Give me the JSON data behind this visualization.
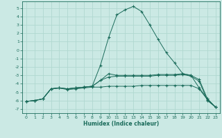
{
  "xlabel": "Humidex (Indice chaleur)",
  "ylabel": "",
  "xlim": [
    -0.5,
    23.5
  ],
  "ylim": [
    -7.5,
    5.8
  ],
  "xticks": [
    0,
    1,
    2,
    3,
    4,
    5,
    6,
    7,
    8,
    9,
    10,
    11,
    12,
    13,
    14,
    15,
    16,
    17,
    18,
    19,
    20,
    21,
    22,
    23
  ],
  "yticks": [
    -7,
    -6,
    -5,
    -4,
    -3,
    -2,
    -1,
    0,
    1,
    2,
    3,
    4,
    5
  ],
  "bg_color": "#cbe9e4",
  "line_color": "#1a6b5a",
  "grid_color": "#b0d8d0",
  "curve1_x": [
    0,
    1,
    2,
    3,
    4,
    5,
    6,
    7,
    8,
    9,
    10,
    11,
    12,
    13,
    14,
    15,
    16,
    17,
    18,
    19,
    20,
    21,
    22,
    23
  ],
  "curve1_y": [
    -6.1,
    -6.0,
    -5.8,
    -4.6,
    -4.5,
    -4.7,
    -4.6,
    -4.5,
    -4.4,
    -4.4,
    -4.3,
    -4.3,
    -4.3,
    -4.3,
    -4.2,
    -4.2,
    -4.2,
    -4.2,
    -4.2,
    -4.2,
    -4.2,
    -4.6,
    -5.9,
    -6.8
  ],
  "curve2_x": [
    0,
    1,
    2,
    3,
    4,
    5,
    6,
    7,
    8,
    9,
    10,
    11,
    12,
    13,
    14,
    15,
    16,
    17,
    18,
    19,
    20,
    21,
    22,
    23
  ],
  "curve2_y": [
    -6.1,
    -6.0,
    -5.8,
    -4.6,
    -4.5,
    -4.6,
    -4.5,
    -4.4,
    -4.3,
    -3.6,
    -3.2,
    -3.1,
    -3.1,
    -3.1,
    -3.1,
    -3.1,
    -3.0,
    -3.0,
    -3.0,
    -2.9,
    -3.1,
    -3.7,
    -6.0,
    -6.8
  ],
  "curve3_x": [
    0,
    1,
    2,
    3,
    4,
    5,
    6,
    7,
    8,
    9,
    10,
    11,
    12,
    13,
    14,
    15,
    16,
    17,
    18,
    19,
    20,
    21,
    22,
    23
  ],
  "curve3_y": [
    -6.1,
    -6.0,
    -5.8,
    -4.6,
    -4.5,
    -4.6,
    -4.5,
    -4.4,
    -4.3,
    -3.6,
    -2.8,
    -3.0,
    -3.0,
    -3.0,
    -3.0,
    -3.0,
    -2.9,
    -2.9,
    -2.9,
    -2.8,
    -3.0,
    -4.5,
    -5.8,
    -6.8
  ],
  "curve4_x": [
    0,
    1,
    2,
    3,
    4,
    5,
    6,
    7,
    8,
    9,
    10,
    11,
    12,
    13,
    14,
    15,
    16,
    17,
    18,
    19,
    20,
    21,
    22,
    23
  ],
  "curve4_y": [
    -6.1,
    -6.0,
    -5.8,
    -4.6,
    -4.5,
    -4.6,
    -4.5,
    -4.4,
    -4.3,
    -1.8,
    1.5,
    4.2,
    4.8,
    5.2,
    4.6,
    3.0,
    1.3,
    -0.3,
    -1.5,
    -2.8,
    -3.0,
    -3.5,
    -5.8,
    -6.8
  ]
}
